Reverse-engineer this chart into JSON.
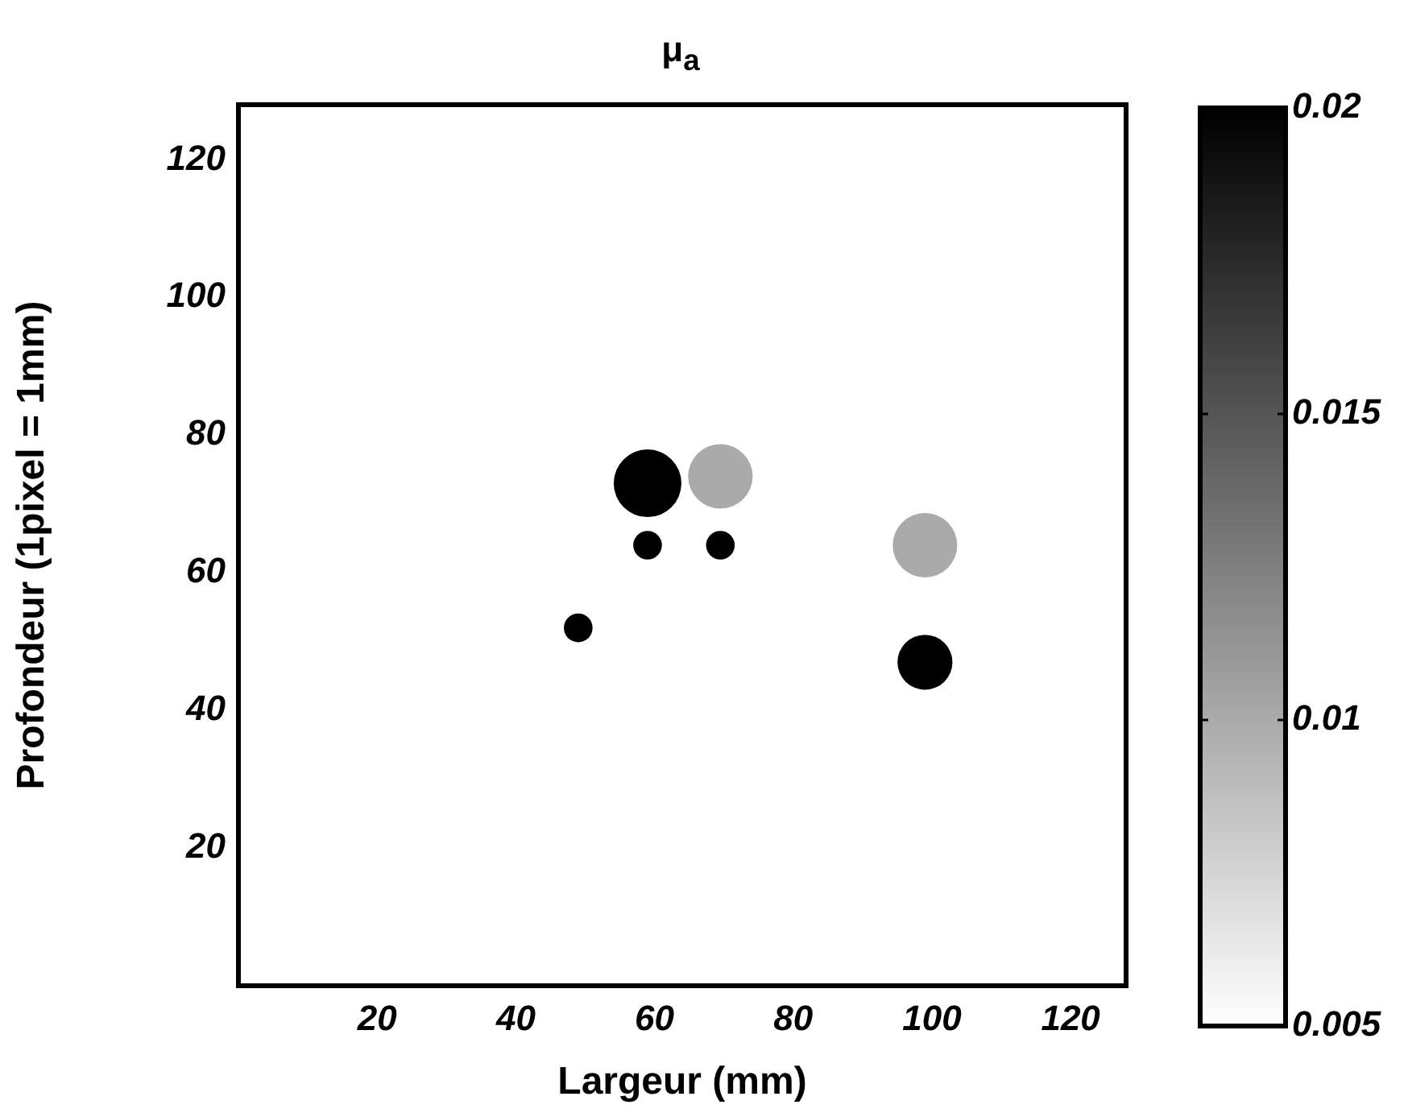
{
  "chart_data": {
    "type": "bubble",
    "title": "μ$_{a}$",
    "xlabel": "Largeur (mm)",
    "ylabel": "Profondeur (1pixel = 1mm)",
    "x": [
      59,
      69.5,
      99,
      49,
      59,
      69.5,
      99
    ],
    "values": [
      73,
      74,
      64,
      52,
      64,
      64,
      47
    ],
    "sizes": [
      1,
      0.91,
      0.91,
      0.18,
      0.18,
      0.18,
      0.66
    ],
    "cvalues": [
      0.02,
      0.01,
      0.01,
      0.02,
      0.02,
      0.02,
      0.02
    ],
    "xlim": [
      0,
      128
    ],
    "xticks": [
      20,
      40,
      60,
      80,
      100,
      120
    ],
    "ylim": [
      0,
      128
    ],
    "yticks": [
      20,
      40,
      60,
      80,
      100,
      120
    ],
    "clim": [
      0.005,
      0.02
    ],
    "cticks": [
      0.005,
      0.01,
      0.015,
      0.02
    ],
    "grid": false,
    "legend": false
  }
}
